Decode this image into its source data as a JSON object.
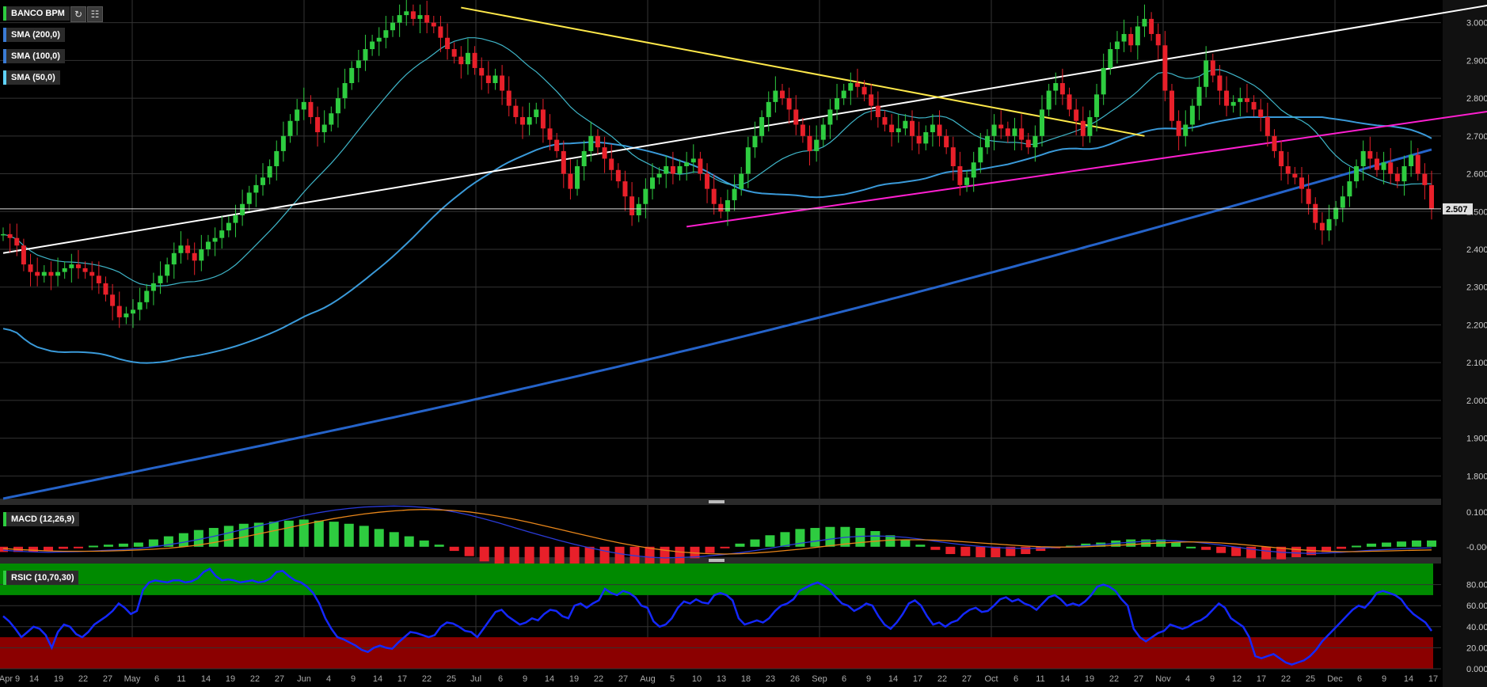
{
  "instrument": "BANCO BPM",
  "toolbar": {
    "refresh_icon": "refresh-icon",
    "chart_type_icon": "bar-chart-icon"
  },
  "indicators": {
    "sma200": "SMA (200,0)",
    "sma100": "SMA (100,0)",
    "sma50": "SMA (50,0)",
    "macd": "MACD (12,26,9)",
    "rsic": "RSIC (10,70,30)"
  },
  "last_price_label": "2.507",
  "colors": {
    "up": "#2ecc40",
    "down": "#e8202a",
    "sma200": "#2563c9",
    "sma100": "#3a9ad9",
    "sma50": "#3fb6c9",
    "trend_white": "#ffffff",
    "trend_yellow": "#ffe94a",
    "trend_magenta": "#ff1fd0",
    "rsi_line": "#1428ff",
    "rsi_over": "#008a00",
    "rsi_under": "#8b0000"
  },
  "chart_data": [
    {
      "type": "candlestick",
      "x_ticks": [
        "Apr 9",
        "14",
        "19",
        "22",
        "27",
        "May",
        "6",
        "11",
        "14",
        "19",
        "22",
        "27",
        "Jun",
        "4",
        "9",
        "14",
        "17",
        "22",
        "25",
        "Jul",
        "6",
        "9",
        "14",
        "19",
        "22",
        "27",
        "Aug",
        "5",
        "10",
        "13",
        "18",
        "23",
        "26",
        "Sep",
        "6",
        "9",
        "14",
        "17",
        "22",
        "27",
        "Oct",
        "6",
        "11",
        "14",
        "19",
        "22",
        "27",
        "Nov",
        "4",
        "9",
        "12",
        "17",
        "22",
        "25",
        "Dec",
        "6",
        "9",
        "14",
        "17"
      ],
      "y_ticks": [
        "3.000",
        "2.900",
        "2.800",
        "2.700",
        "2.600",
        "2.500",
        "2.400",
        "2.300",
        "2.200",
        "2.100",
        "2.000",
        "1.900",
        "1.800"
      ],
      "ylim": [
        1.74,
        3.06
      ],
      "last_price": 2.507,
      "close": [
        2.44,
        2.43,
        2.41,
        2.36,
        2.34,
        2.33,
        2.34,
        2.33,
        2.34,
        2.35,
        2.36,
        2.35,
        2.34,
        2.33,
        2.31,
        2.28,
        2.25,
        2.22,
        2.23,
        2.24,
        2.26,
        2.29,
        2.31,
        2.33,
        2.36,
        2.39,
        2.41,
        2.39,
        2.37,
        2.4,
        2.42,
        2.43,
        2.45,
        2.47,
        2.49,
        2.52,
        2.55,
        2.57,
        2.59,
        2.62,
        2.66,
        2.7,
        2.74,
        2.77,
        2.79,
        2.75,
        2.71,
        2.73,
        2.76,
        2.8,
        2.84,
        2.88,
        2.9,
        2.93,
        2.95,
        2.96,
        2.98,
        3.0,
        3.02,
        3.03,
        3.01,
        3.02,
        3.0,
        2.99,
        2.96,
        2.93,
        2.91,
        2.89,
        2.92,
        2.88,
        2.86,
        2.84,
        2.86,
        2.82,
        2.78,
        2.75,
        2.73,
        2.75,
        2.77,
        2.72,
        2.69,
        2.66,
        2.6,
        2.56,
        2.62,
        2.66,
        2.7,
        2.67,
        2.64,
        2.61,
        2.58,
        2.54,
        2.49,
        2.52,
        2.56,
        2.59,
        2.6,
        2.62,
        2.6,
        2.62,
        2.63,
        2.64,
        2.6,
        2.56,
        2.52,
        2.5,
        2.53,
        2.56,
        2.6,
        2.67,
        2.7,
        2.75,
        2.79,
        2.82,
        2.8,
        2.77,
        2.73,
        2.7,
        2.66,
        2.69,
        2.73,
        2.77,
        2.8,
        2.82,
        2.84,
        2.83,
        2.81,
        2.78,
        2.75,
        2.73,
        2.71,
        2.72,
        2.74,
        2.7,
        2.68,
        2.71,
        2.73,
        2.7,
        2.67,
        2.62,
        2.57,
        2.59,
        2.63,
        2.67,
        2.7,
        2.73,
        2.72,
        2.7,
        2.72,
        2.69,
        2.67,
        2.7,
        2.77,
        2.82,
        2.84,
        2.81,
        2.77,
        2.74,
        2.7,
        2.75,
        2.81,
        2.88,
        2.93,
        2.95,
        2.97,
        2.94,
        2.99,
        3.01,
        2.97,
        2.94,
        2.82,
        2.74,
        2.7,
        2.73,
        2.78,
        2.83,
        2.9,
        2.86,
        2.82,
        2.78,
        2.79,
        2.8,
        2.79,
        2.77,
        2.75,
        2.7,
        2.66,
        2.62,
        2.6,
        2.59,
        2.56,
        2.52,
        2.47,
        2.45,
        2.48,
        2.51,
        2.54,
        2.58,
        2.62,
        2.66,
        2.64,
        2.61,
        2.63,
        2.6,
        2.58,
        2.62,
        2.65,
        2.6,
        2.57,
        2.507
      ],
      "macd": [
        -0.01,
        -0.013,
        -0.015,
        -0.016,
        -0.015,
        -0.014,
        -0.012,
        -0.01,
        -0.008,
        -0.005,
        0.0,
        0.006,
        0.013,
        0.021,
        0.03,
        0.04,
        0.05,
        0.06,
        0.07,
        0.08,
        0.09,
        0.098,
        0.105,
        0.11,
        0.114,
        0.116,
        0.117,
        0.116,
        0.113,
        0.108,
        0.1,
        0.091,
        0.08,
        0.068,
        0.055,
        0.042,
        0.03,
        0.018,
        0.007,
        -0.003,
        -0.012,
        -0.02,
        -0.026,
        -0.03,
        -0.032,
        -0.031,
        -0.029,
        -0.026,
        -0.022,
        -0.017,
        -0.011,
        -0.004,
        0.003,
        0.01,
        0.016,
        0.022,
        0.027,
        0.03,
        0.031,
        0.03,
        0.027,
        0.022,
        0.016,
        0.01,
        0.005,
        0.001,
        -0.002,
        -0.004,
        -0.005,
        -0.004,
        -0.002,
        0.0,
        0.003,
        0.006,
        0.01,
        0.013,
        0.016,
        0.018,
        0.017,
        0.014,
        0.01,
        0.005,
        -0.001,
        -0.007,
        -0.012,
        -0.016,
        -0.018,
        -0.019,
        -0.018,
        -0.016,
        -0.013,
        -0.01,
        -0.008,
        -0.006,
        -0.004,
        -0.003
      ],
      "macd_signal": [
        -0.005,
        -0.008,
        -0.01,
        -0.012,
        -0.013,
        -0.013,
        -0.013,
        -0.012,
        -0.011,
        -0.009,
        -0.007,
        -0.004,
        0.0,
        0.005,
        0.012,
        0.02,
        0.028,
        0.037,
        0.046,
        0.055,
        0.064,
        0.073,
        0.081,
        0.088,
        0.094,
        0.099,
        0.103,
        0.106,
        0.107,
        0.106,
        0.104,
        0.1,
        0.094,
        0.087,
        0.079,
        0.07,
        0.06,
        0.05,
        0.04,
        0.03,
        0.02,
        0.011,
        0.003,
        -0.004,
        -0.01,
        -0.015,
        -0.018,
        -0.02,
        -0.021,
        -0.02,
        -0.018,
        -0.015,
        -0.011,
        -0.007,
        -0.002,
        0.003,
        0.008,
        0.012,
        0.016,
        0.019,
        0.02,
        0.02,
        0.019,
        0.017,
        0.014,
        0.011,
        0.008,
        0.005,
        0.002,
        0.0,
        -0.001,
        -0.001,
        0.0,
        0.002,
        0.004,
        0.006,
        0.009,
        0.011,
        0.013,
        0.014,
        0.013,
        0.011,
        0.008,
        0.004,
        0.0,
        -0.004,
        -0.008,
        -0.011,
        -0.013,
        -0.014,
        -0.014,
        -0.013,
        -0.012,
        -0.011,
        -0.01,
        -0.009
      ],
      "macd_ticks": [
        "0.100",
        "-0.000"
      ],
      "rsi": [
        50,
        45,
        38,
        30,
        35,
        40,
        38,
        32,
        20,
        35,
        42,
        40,
        33,
        30,
        35,
        42,
        46,
        50,
        55,
        62,
        58,
        52,
        55,
        75,
        82,
        84,
        83,
        82,
        84,
        84,
        82,
        83,
        86,
        92,
        95,
        88,
        84,
        85,
        84,
        82,
        83,
        84,
        82,
        83,
        86,
        92,
        93,
        88,
        84,
        82,
        78,
        72,
        62,
        48,
        38,
        30,
        28,
        25,
        22,
        18,
        16,
        20,
        22,
        20,
        19,
        25,
        30,
        35,
        34,
        32,
        30,
        32,
        40,
        44,
        43,
        40,
        36,
        35,
        30,
        38,
        46,
        54,
        56,
        50,
        46,
        42,
        44,
        48,
        46,
        52,
        56,
        55,
        50,
        48,
        60,
        62,
        58,
        62,
        65,
        76,
        72,
        70,
        74,
        72,
        68,
        60,
        58,
        45,
        40,
        42,
        48,
        58,
        64,
        62,
        66,
        63,
        62,
        70,
        72,
        70,
        65,
        48,
        42,
        44,
        46,
        44,
        48,
        55,
        60,
        62,
        66,
        74,
        77,
        80,
        82,
        79,
        75,
        68,
        62,
        60,
        55,
        58,
        62,
        60,
        50,
        42,
        38,
        44,
        52,
        62,
        65,
        60,
        50,
        42,
        44,
        40,
        44,
        46,
        52,
        56,
        58,
        54,
        55,
        60,
        66,
        68,
        64,
        66,
        62,
        60,
        56,
        62,
        68,
        70,
        66,
        60,
        62,
        60,
        64,
        70,
        78,
        80,
        78,
        74,
        66,
        60,
        38,
        30,
        26,
        30,
        34,
        36,
        42,
        40,
        38,
        40,
        44,
        46,
        50,
        56,
        62,
        58,
        48,
        44,
        40,
        30,
        12,
        10,
        12,
        14,
        10,
        6,
        4,
        6,
        8,
        12,
        18,
        26,
        32,
        38,
        44,
        50,
        56,
        60,
        58,
        64,
        72,
        74,
        72,
        70,
        66,
        58,
        52,
        48,
        44,
        36
      ],
      "rsi_ticks": [
        "80.00",
        "60.00",
        "40.00",
        "20.00",
        "0.000"
      ],
      "rsi_levels": [
        70,
        30
      ]
    }
  ]
}
